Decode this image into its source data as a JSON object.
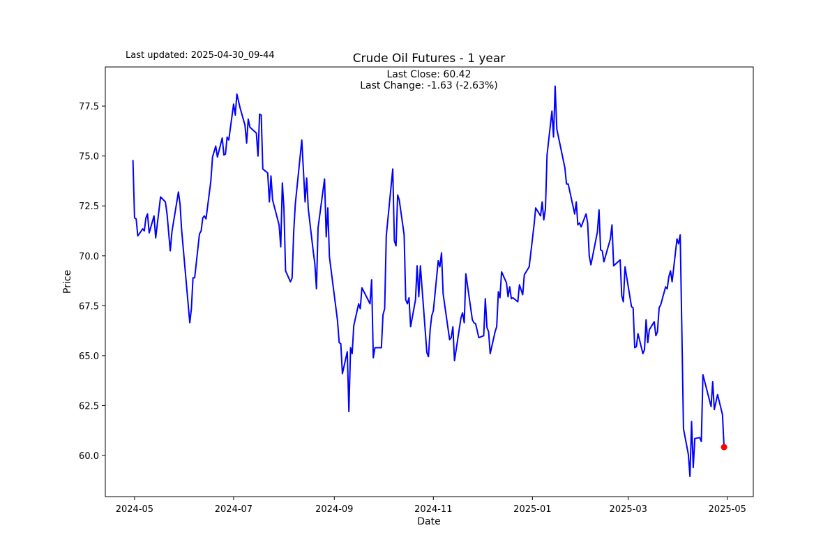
{
  "chart_data": {
    "type": "line",
    "title": "Crude Oil Futures - 1 year",
    "subtitle": "Last updated: 2025-04-30_09-44",
    "annotations": [
      "Last Close: 60.42",
      "Last Change: -1.63 (-2.63%)"
    ],
    "xlabel": "Date",
    "ylabel": "Price",
    "xlim": [
      "2024-04-13",
      "2025-05-17"
    ],
    "ylim": [
      57.94,
      79.46
    ],
    "grid": false,
    "x_ticks": [
      "2024-05",
      "2024-07",
      "2024-09",
      "2024-11",
      "2025-01",
      "2025-03",
      "2025-05"
    ],
    "y_ticks": [
      "60.0",
      "62.5",
      "65.0",
      "67.5",
      "70.0",
      "72.5",
      "75.0",
      "77.5"
    ],
    "line_color": "#0000ff",
    "last_point_marker_color": "#ff0000",
    "last_point": {
      "x": "2025-04-29",
      "y": 60.42
    },
    "series": [
      {
        "x": [
          "2024-04-30",
          "2024-05-01",
          "2024-05-02",
          "2024-05-03",
          "2024-05-06",
          "2024-05-07",
          "2024-05-08",
          "2024-05-09",
          "2024-05-10",
          "2024-05-13",
          "2024-05-14",
          "2024-05-17",
          "2024-05-20",
          "2024-05-21",
          "2024-05-23",
          "2024-05-24",
          "2024-05-28",
          "2024-05-29",
          "2024-05-30",
          "2024-06-04",
          "2024-06-05",
          "2024-06-06",
          "2024-06-07",
          "2024-06-10",
          "2024-06-11",
          "2024-06-12",
          "2024-06-13",
          "2024-06-14",
          "2024-06-17",
          "2024-06-18",
          "2024-06-20",
          "2024-06-21",
          "2024-06-24",
          "2024-06-25",
          "2024-06-26",
          "2024-06-27",
          "2024-06-28",
          "2024-07-01",
          "2024-07-02",
          "2024-07-03",
          "2024-07-05",
          "2024-07-08",
          "2024-07-09",
          "2024-07-10",
          "2024-07-11",
          "2024-07-15",
          "2024-07-16",
          "2024-07-17",
          "2024-07-18",
          "2024-07-19",
          "2024-07-22",
          "2024-07-23",
          "2024-07-24",
          "2024-07-25",
          "2024-07-29",
          "2024-07-30",
          "2024-07-31",
          "2024-08-01",
          "2024-08-02",
          "2024-08-05",
          "2024-08-06",
          "2024-08-07",
          "2024-08-08",
          "2024-08-12",
          "2024-08-14",
          "2024-08-15",
          "2024-08-16",
          "2024-08-19",
          "2024-08-20",
          "2024-08-21",
          "2024-08-22",
          "2024-08-26",
          "2024-08-27",
          "2024-08-28",
          "2024-08-29",
          "2024-09-03",
          "2024-09-04",
          "2024-09-05",
          "2024-09-06",
          "2024-09-09",
          "2024-09-10",
          "2024-09-11",
          "2024-09-12",
          "2024-09-13",
          "2024-09-16",
          "2024-09-17",
          "2024-09-18",
          "2024-09-23",
          "2024-09-24",
          "2024-09-25",
          "2024-09-26",
          "2024-09-30",
          "2024-10-01",
          "2024-10-02",
          "2024-10-03",
          "2024-10-07",
          "2024-10-08",
          "2024-10-09",
          "2024-10-10",
          "2024-10-11",
          "2024-10-14",
          "2024-10-15",
          "2024-10-16",
          "2024-10-17",
          "2024-10-18",
          "2024-10-21",
          "2024-10-22",
          "2024-10-23",
          "2024-10-24",
          "2024-10-28",
          "2024-10-29",
          "2024-10-30",
          "2024-10-31",
          "2024-11-01",
          "2024-11-04",
          "2024-11-05",
          "2024-11-06",
          "2024-11-07",
          "2024-11-11",
          "2024-11-12",
          "2024-11-13",
          "2024-11-14",
          "2024-11-18",
          "2024-11-19",
          "2024-11-20",
          "2024-11-21",
          "2024-11-25",
          "2024-11-26",
          "2024-11-27",
          "2024-11-29",
          "2024-12-02",
          "2024-12-03",
          "2024-12-04",
          "2024-12-05",
          "2024-12-06",
          "2024-12-09",
          "2024-12-10",
          "2024-12-11",
          "2024-12-12",
          "2024-12-13",
          "2024-12-16",
          "2024-12-17",
          "2024-12-18",
          "2024-12-19",
          "2024-12-20",
          "2024-12-23",
          "2024-12-24",
          "2024-12-26",
          "2024-12-27",
          "2024-12-30",
          "2025-01-02",
          "2025-01-03",
          "2025-01-06",
          "2025-01-07",
          "2025-01-08",
          "2025-01-09",
          "2025-01-10",
          "2025-01-13",
          "2025-01-14",
          "2025-01-15",
          "2025-01-16",
          "2025-01-21",
          "2025-01-22",
          "2025-01-23",
          "2025-01-27",
          "2025-01-28",
          "2025-01-29",
          "2025-01-30",
          "2025-01-31",
          "2025-02-03",
          "2025-02-04",
          "2025-02-05",
          "2025-02-06",
          "2025-02-10",
          "2025-02-11",
          "2025-02-12",
          "2025-02-13",
          "2025-02-14",
          "2025-02-18",
          "2025-02-19",
          "2025-02-20",
          "2025-02-24",
          "2025-02-25",
          "2025-02-26",
          "2025-02-27",
          "2025-03-03",
          "2025-03-04",
          "2025-03-05",
          "2025-03-06",
          "2025-03-07",
          "2025-03-10",
          "2025-03-11",
          "2025-03-12",
          "2025-03-13",
          "2025-03-14",
          "2025-03-17",
          "2025-03-18",
          "2025-03-19",
          "2025-03-20",
          "2025-03-21",
          "2025-03-24",
          "2025-03-25",
          "2025-03-26",
          "2025-03-27",
          "2025-03-28",
          "2025-03-31",
          "2025-04-01",
          "2025-04-02",
          "2025-04-03",
          "2025-04-04",
          "2025-04-07",
          "2025-04-08",
          "2025-04-09",
          "2025-04-10",
          "2025-04-11",
          "2025-04-14",
          "2025-04-15",
          "2025-04-16",
          "2025-04-21",
          "2025-04-22",
          "2025-04-23",
          "2025-04-25",
          "2025-04-28",
          "2025-04-29"
        ],
        "y": [
          74.8,
          71.9,
          71.85,
          71.0,
          71.35,
          71.25,
          71.9,
          72.1,
          71.15,
          72.0,
          70.9,
          72.95,
          72.7,
          72.1,
          70.25,
          71.2,
          73.2,
          72.6,
          71.3,
          66.65,
          67.35,
          68.9,
          68.9,
          71.1,
          71.25,
          71.9,
          72.0,
          71.85,
          73.75,
          74.95,
          75.5,
          74.95,
          75.9,
          75.05,
          75.1,
          75.95,
          75.8,
          77.6,
          77.05,
          78.1,
          77.4,
          76.55,
          75.65,
          76.85,
          76.45,
          76.15,
          75.0,
          77.1,
          77.05,
          74.35,
          74.15,
          72.7,
          74.0,
          72.8,
          71.55,
          70.45,
          73.65,
          72.35,
          69.25,
          68.7,
          68.9,
          71.2,
          72.6,
          75.8,
          72.7,
          73.9,
          72.35,
          70.25,
          69.6,
          68.35,
          71.4,
          73.85,
          70.95,
          72.4,
          69.95,
          66.75,
          65.65,
          65.6,
          64.1,
          65.2,
          62.2,
          65.4,
          65.1,
          66.5,
          67.6,
          67.35,
          68.4,
          67.6,
          68.8,
          64.9,
          65.4,
          65.4,
          67.05,
          67.35,
          71.0,
          74.35,
          70.75,
          70.5,
          73.05,
          72.8,
          71.05,
          67.8,
          67.6,
          67.9,
          66.45,
          67.8,
          69.5,
          67.95,
          69.5,
          65.15,
          64.95,
          66.3,
          67.0,
          67.25,
          69.75,
          69.45,
          70.15,
          68.1,
          65.8,
          65.9,
          66.45,
          64.75,
          66.9,
          67.15,
          66.65,
          69.1,
          66.8,
          66.65,
          66.6,
          65.9,
          66.0,
          67.85,
          66.4,
          66.2,
          65.1,
          66.2,
          66.45,
          68.2,
          67.9,
          69.2,
          68.65,
          67.95,
          68.45,
          67.85,
          67.9,
          67.7,
          68.55,
          68.05,
          69.05,
          69.45,
          71.55,
          72.4,
          72.0,
          72.7,
          71.8,
          72.35,
          75.05,
          77.25,
          75.95,
          78.5,
          76.35,
          74.4,
          73.6,
          73.6,
          72.1,
          72.7,
          71.55,
          71.65,
          71.45,
          72.1,
          71.65,
          70.0,
          69.55,
          71.2,
          72.3,
          70.3,
          70.25,
          69.7,
          70.85,
          71.55,
          69.5,
          69.8,
          68.0,
          67.7,
          69.45,
          67.45,
          67.4,
          65.4,
          65.45,
          66.1,
          65.1,
          65.3,
          66.8,
          65.65,
          66.3,
          66.7,
          66.0,
          66.2,
          67.4,
          67.55,
          68.45,
          68.35,
          68.95,
          69.25,
          68.7,
          70.85,
          70.6,
          71.05,
          66.2,
          61.35,
          60.05,
          58.95,
          61.7,
          59.4,
          60.85,
          60.9,
          60.7,
          64.05,
          62.45,
          63.7,
          62.3,
          63.05,
          62.05,
          60.42
        ]
      }
    ]
  }
}
